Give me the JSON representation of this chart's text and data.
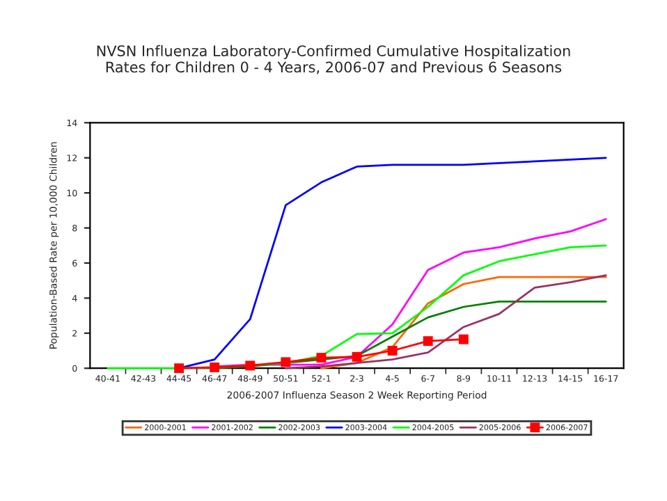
{
  "chart_data": {
    "type": "line",
    "title": "NVSN Influenza Laboratory-Confirmed Cumulative Hospitalization\nRates for Children 0 - 4 Years, 2006-07 and Previous 6 Seasons",
    "xlabel": "2006-2007 Influenza Season 2 Week Reporting Period",
    "ylabel": "Population-Based Rate per 10,000 Children",
    "categories": [
      "40-41",
      "42-43",
      "44-45",
      "46-47",
      "48-49",
      "50-51",
      "52-1",
      "2-3",
      "4-5",
      "6-7",
      "8-9",
      "10-11",
      "12-13",
      "14-15",
      "16-17"
    ],
    "ylim": [
      0,
      14
    ],
    "yticks": [
      0,
      2,
      4,
      6,
      8,
      10,
      12,
      14
    ],
    "grid": false,
    "legend": "bottom",
    "series": [
      {
        "name": "2000-2001",
        "color": "#ff6600",
        "values": [
          null,
          null,
          null,
          null,
          null,
          null,
          0,
          0.3,
          1.2,
          3.7,
          4.8,
          5.2,
          5.2,
          5.2,
          5.2
        ]
      },
      {
        "name": "2001-2002",
        "color": "#ff00ff",
        "values": [
          null,
          null,
          null,
          0.1,
          0.2,
          0.2,
          0.2,
          0.65,
          2.5,
          5.6,
          6.6,
          6.9,
          7.4,
          7.8,
          8.5
        ]
      },
      {
        "name": "2002-2003",
        "color": "#008000",
        "values": [
          null,
          null,
          null,
          0,
          0.1,
          0.3,
          0.5,
          0.7,
          1.8,
          2.9,
          3.5,
          3.8,
          3.8,
          3.8,
          3.8
        ]
      },
      {
        "name": "2003-2004",
        "color": "#0000ff",
        "values": [
          null,
          null,
          0,
          0.5,
          2.8,
          9.3,
          10.6,
          11.5,
          11.6,
          11.6,
          11.6,
          11.7,
          11.8,
          11.9,
          12.0
        ]
      },
      {
        "name": "2004-2005",
        "color": "#00ff00",
        "values": [
          0,
          0,
          0,
          0.05,
          0.15,
          0.3,
          0.7,
          1.95,
          2.0,
          3.5,
          5.3,
          6.1,
          6.5,
          6.9,
          7.0
        ]
      },
      {
        "name": "2005-2006",
        "color": "#993366",
        "values": [
          null,
          null,
          null,
          null,
          null,
          0,
          0.1,
          0.3,
          0.5,
          0.9,
          2.35,
          3.1,
          4.6,
          4.9,
          5.3
        ]
      },
      {
        "name": "2006-2007",
        "color": "#ff0000",
        "marker": "square",
        "values": [
          null,
          null,
          0,
          0.05,
          0.15,
          0.35,
          0.6,
          0.65,
          1.0,
          1.55,
          1.65,
          null,
          null,
          null,
          null
        ]
      }
    ]
  }
}
